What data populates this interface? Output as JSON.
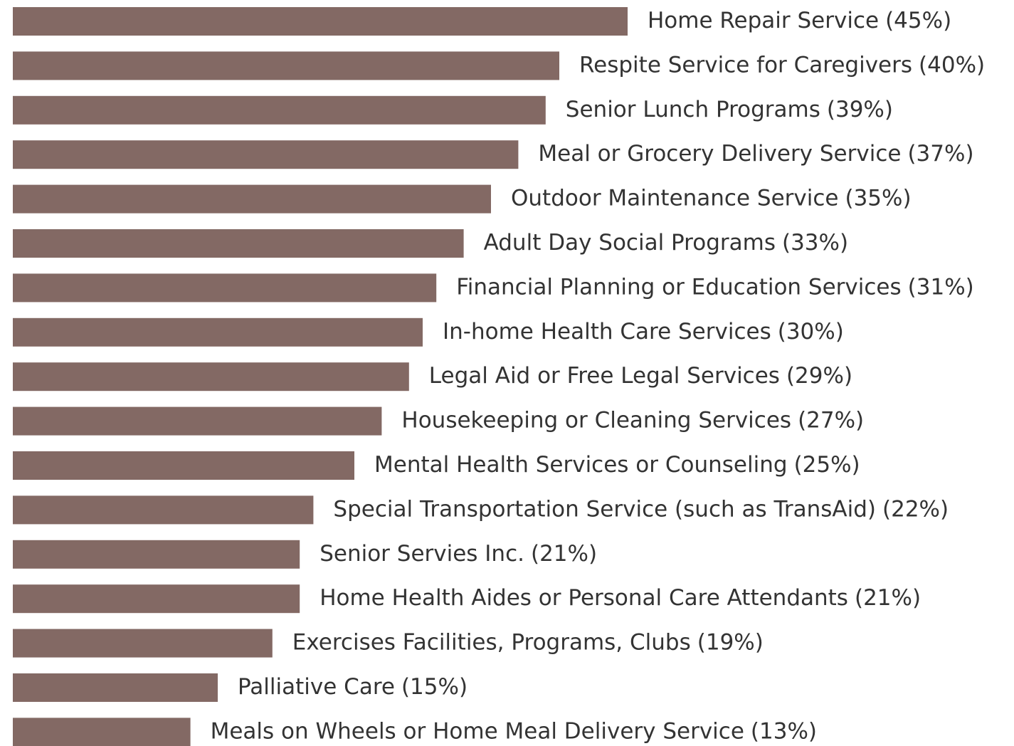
{
  "chart_data": {
    "type": "bar",
    "orientation": "horizontal",
    "color": "#836964",
    "categories": [
      "Home Repair Service",
      "Respite Service for Caregivers",
      "Senior Lunch Programs",
      "Meal or Grocery Delivery Service",
      "Outdoor Maintenance Service",
      "Adult Day Social Programs",
      "Financial Planning or Education Services",
      "In-home Health Care Services",
      "Legal Aid or Free Legal Services",
      "Housekeeping or Cleaning Services",
      "Mental Health Services or Counseling",
      "Special Transportation Service (such as TransAid)",
      "Senior Servies Inc.",
      "Home Health Aides or Personal Care Attendants",
      "Exercises Facilities, Programs, Clubs",
      "Palliative Care",
      "Meals on Wheels or Home Meal Delivery Service"
    ],
    "values": [
      45,
      40,
      39,
      37,
      35,
      33,
      31,
      30,
      29,
      27,
      25,
      22,
      21,
      21,
      19,
      15,
      13
    ],
    "value_labels": [
      "(45%)",
      "(40%)",
      "(39%)",
      "(37%)",
      "(35%)",
      "(33%)",
      "(31%)",
      "(30%)",
      "(29%)",
      "(27%)",
      "(25%)",
      "(22%)",
      "(21%)",
      "(21%)",
      "(19%)",
      "(15%)",
      "(13%)"
    ]
  }
}
